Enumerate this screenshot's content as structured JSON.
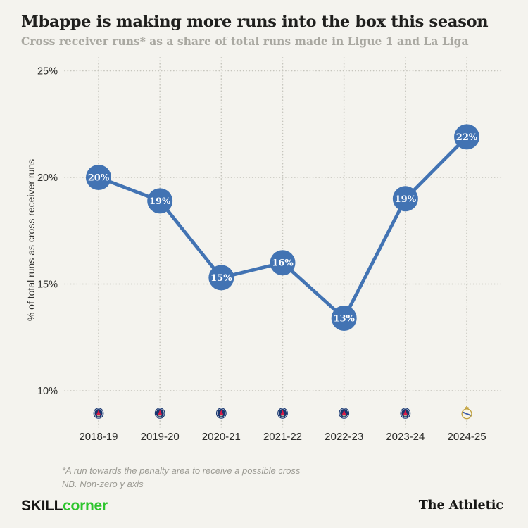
{
  "header": {
    "title": "Mbappe is making more runs into the box this season",
    "subtitle": "Cross receiver runs* as a share of total runs made in Ligue 1 and La Liga"
  },
  "chart_data": {
    "type": "line",
    "title": "Mbappe is making more runs into the box this season",
    "subtitle": "Cross receiver runs* as a share of total runs made in Ligue 1 and La Liga",
    "xlabel": "",
    "ylabel": "% of total runs as cross receiver runs",
    "categories": [
      "2018-19",
      "2019-20",
      "2020-21",
      "2021-22",
      "2022-23",
      "2023-24",
      "2024-25"
    ],
    "values": [
      20,
      18.9,
      15.3,
      16.0,
      13.4,
      19,
      21.9
    ],
    "labels": [
      "20%",
      "19%",
      "15%",
      "16%",
      "13%",
      "19%",
      "22%"
    ],
    "clubs": [
      "psg",
      "psg",
      "psg",
      "psg",
      "psg",
      "psg",
      "real-madrid"
    ],
    "yticks": [
      25,
      20,
      15,
      10
    ],
    "ytick_labels": [
      "25%",
      "20%",
      "15%",
      "10%"
    ],
    "ylim": [
      8.5,
      26
    ],
    "grid": "dotted horizontal and vertical",
    "legend": "none",
    "line_color": "#4273b3",
    "marker_color": "#4273b3",
    "marker_text_color": "#ffffff",
    "grid_color": "#c6c5bd",
    "background_color": "#f4f3ee"
  },
  "footnote": {
    "line1": "*A run towards the penalty area to receive a possible cross",
    "line2": "NB. Non-zero y axis"
  },
  "footer": {
    "skill": "SKILL",
    "corner": "corner",
    "athletic": "The Athletic"
  }
}
